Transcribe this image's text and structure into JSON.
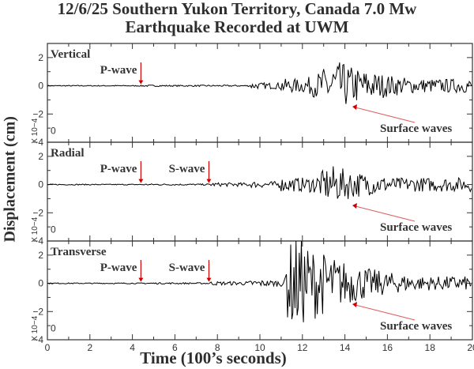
{
  "title_line1": "12/6/25 Southern Yukon Territory, Canada 7.0 Mw",
  "title_line2": "Earthquake Recorded at UWM",
  "ylabel": "Displacement (cm)",
  "xlabel": "Time (100’s seconds)",
  "colors": {
    "trace": "#000000",
    "arrow": "#cc0000",
    "surface_arrow": "#e06060",
    "text": "#2e2e2e"
  },
  "panels": [
    {
      "name": "Vertical",
      "p_label": "P-wave",
      "s_label": null,
      "surface_label": "Surface waves",
      "scale": "X 10−4"
    },
    {
      "name": "Radial",
      "p_label": "P-wave",
      "s_label": "S-wave",
      "surface_label": "Surface waves",
      "scale": "X 10−4"
    },
    {
      "name": "Transverse",
      "p_label": "P-wave",
      "s_label": "S-wave",
      "surface_label": "Surface waves",
      "scale": "X 10−4"
    }
  ],
  "chart_data": {
    "type": "line",
    "title": "12/6/25 Southern Yukon Territory, Canada 7.0 Mw Earthquake Recorded at UWM",
    "xlabel": "Time (100’s seconds)",
    "ylabel": "Displacement (cm)",
    "xlim": [
      0,
      20
    ],
    "x_ticks": [
      0,
      2,
      4,
      6,
      8,
      10,
      12,
      14,
      16,
      18,
      20
    ],
    "y_ticks": [
      -4,
      -2,
      0,
      2
    ],
    "y_scale": "x 10^-4",
    "ylim": [
      -4,
      3
    ],
    "series": [
      {
        "name": "Vertical",
        "p_arrival": 4.4,
        "surface_onset": 11.0,
        "peak_amplitude": 1.9,
        "peak_time": 13.4
      },
      {
        "name": "Radial",
        "p_arrival": 4.4,
        "s_arrival": 7.6,
        "surface_onset": 11.0,
        "peak_amplitude": 1.4,
        "peak_time": 13.3
      },
      {
        "name": "Transverse",
        "p_arrival": 4.4,
        "s_arrival": 7.6,
        "surface_onset": 11.2,
        "peak_amplitude": 3.5,
        "peak_time": 11.6
      }
    ],
    "annotations": [
      "P-wave",
      "S-wave",
      "Surface waves"
    ]
  }
}
